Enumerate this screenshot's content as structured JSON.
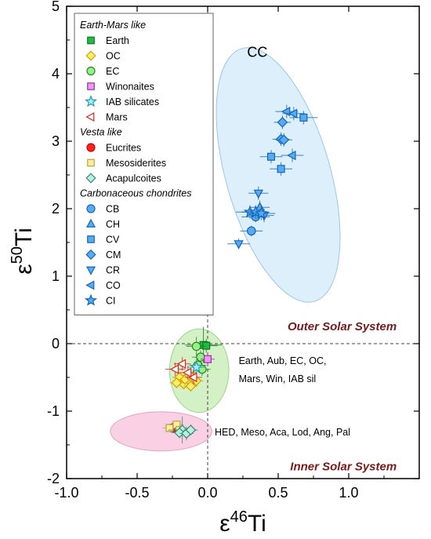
{
  "chart_data": {
    "type": "scatter",
    "xlabel": "ε46Ti",
    "ylabel": "ε50Ti",
    "xlabel_parts": {
      "base": "ε",
      "sup": "46",
      "suffix": "Ti"
    },
    "ylabel_parts": {
      "base": "ε",
      "sup": "50",
      "suffix": "Ti"
    },
    "xlim": [
      -1.0,
      1.5
    ],
    "ylim": [
      -2,
      5
    ],
    "xticks": [
      -1.0,
      -0.5,
      0.0,
      0.5,
      1.0
    ],
    "xtick_labels": [
      "-1.0",
      "-0.5",
      "0.0",
      "0.5",
      "1.0"
    ],
    "yticks": [
      -2,
      -1,
      0,
      1,
      2,
      3,
      4,
      5
    ],
    "ytick_labels": [
      "-2",
      "-1",
      "0",
      "1",
      "2",
      "3",
      "4",
      "5"
    ],
    "grid": false,
    "legend_position": "top-left",
    "zero_lines": true,
    "legend": [
      {
        "kind": "header",
        "label": "Earth-Mars like"
      },
      {
        "kind": "item",
        "label": "Earth",
        "series": "Earth"
      },
      {
        "kind": "item",
        "label": "OC",
        "series": "OC"
      },
      {
        "kind": "item",
        "label": "EC",
        "series": "EC"
      },
      {
        "kind": "item",
        "label": "Winonaites",
        "series": "Winonaites"
      },
      {
        "kind": "item",
        "label": "IAB silicates",
        "series": "IAB silicates"
      },
      {
        "kind": "item",
        "label": "Mars",
        "series": "Mars"
      },
      {
        "kind": "header",
        "label": "Vesta like"
      },
      {
        "kind": "item",
        "label": "Eucrites",
        "series": "Eucrites"
      },
      {
        "kind": "item",
        "label": "Mesosiderites",
        "series": "Mesosiderites"
      },
      {
        "kind": "item",
        "label": "Acapulcoites",
        "series": "Acapulcoites"
      },
      {
        "kind": "header",
        "label": "Carbonaceous chondrites"
      },
      {
        "kind": "item",
        "label": "CB",
        "series": "CB"
      },
      {
        "kind": "item",
        "label": "CH",
        "series": "CH"
      },
      {
        "kind": "item",
        "label": "CV",
        "series": "CV"
      },
      {
        "kind": "item",
        "label": "CM",
        "series": "CM"
      },
      {
        "kind": "item",
        "label": "CR",
        "series": "CR"
      },
      {
        "kind": "item",
        "label": "CO",
        "series": "CO"
      },
      {
        "kind": "item",
        "label": "CI",
        "series": "CI"
      }
    ],
    "series": [
      {
        "name": "Earth",
        "marker": "square",
        "fill": "#22bb44",
        "stroke": "#117722",
        "points": [
          {
            "x": -0.03,
            "y": -0.02,
            "xerr": 0.13,
            "yerr": 0.27
          },
          {
            "x": -0.01,
            "y": -0.03,
            "xerr": 0.08,
            "yerr": 0.1
          }
        ]
      },
      {
        "name": "OC",
        "marker": "diamond",
        "fill": "#ffee66",
        "stroke": "#d4a000",
        "points": [
          {
            "x": -0.2,
            "y": -0.5,
            "xerr": 0.05,
            "yerr": 0.08
          },
          {
            "x": -0.17,
            "y": -0.6,
            "xerr": 0.05,
            "yerr": 0.08
          },
          {
            "x": -0.12,
            "y": -0.63,
            "xerr": 0.05,
            "yerr": 0.08
          },
          {
            "x": -0.16,
            "y": -0.53,
            "xerr": 0.05,
            "yerr": 0.08
          },
          {
            "x": -0.22,
            "y": -0.58,
            "xerr": 0.05,
            "yerr": 0.08
          },
          {
            "x": -0.08,
            "y": -0.55,
            "xerr": 0.05,
            "yerr": 0.08
          },
          {
            "x": -0.13,
            "y": -0.47,
            "xerr": 0.05,
            "yerr": 0.08
          }
        ]
      },
      {
        "name": "EC",
        "marker": "circle",
        "fill": "#99ee88",
        "stroke": "#228822",
        "points": [
          {
            "x": -0.08,
            "y": -0.04,
            "xerr": 0.07,
            "yerr": 0.14
          },
          {
            "x": -0.05,
            "y": -0.2,
            "xerr": 0.06,
            "yerr": 0.1
          },
          {
            "x": -0.07,
            "y": -0.32,
            "xerr": 0.06,
            "yerr": 0.1
          },
          {
            "x": -0.04,
            "y": -0.38,
            "xerr": 0.06,
            "yerr": 0.1
          }
        ]
      },
      {
        "name": "Winonaites",
        "marker": "square",
        "fill": "#ee99ee",
        "stroke": "#9933aa",
        "points": [
          {
            "x": 0.0,
            "y": -0.23,
            "xerr": 0.05,
            "yerr": 0.1
          }
        ]
      },
      {
        "name": "IAB silicates",
        "marker": "star",
        "fill": "#aaeeff",
        "stroke": "#2299bb",
        "points": [
          {
            "x": -0.08,
            "y": -0.35,
            "xerr": 0.06,
            "yerr": 0.12
          }
        ]
      },
      {
        "name": "Mars",
        "marker": "triangle-left",
        "fill": "#ffffff",
        "stroke": "#dd2222",
        "points": [
          {
            "x": -0.23,
            "y": -0.38,
            "xerr": 0.07,
            "yerr": 0.1
          },
          {
            "x": -0.18,
            "y": -0.3,
            "xerr": 0.06,
            "yerr": 0.1
          },
          {
            "x": -0.1,
            "y": -0.5,
            "xerr": 0.06,
            "yerr": 0.1
          },
          {
            "x": -0.14,
            "y": -0.43,
            "xerr": 0.06,
            "yerr": 0.1
          }
        ]
      },
      {
        "name": "Eucrites",
        "marker": "circle",
        "fill": "#ff2222",
        "stroke": "#cc0000",
        "points": [
          {
            "x": -0.25,
            "y": -1.25,
            "xerr": 0.04,
            "yerr": 0.05
          },
          {
            "x": -0.23,
            "y": -1.23,
            "xerr": 0.04,
            "yerr": 0.05
          }
        ]
      },
      {
        "name": "Mesosiderites",
        "marker": "square",
        "fill": "#ffee99",
        "stroke": "#b8a050",
        "points": [
          {
            "x": -0.27,
            "y": -1.25,
            "xerr": 0.05,
            "yerr": 0.06
          },
          {
            "x": -0.22,
            "y": -1.2,
            "xerr": 0.05,
            "yerr": 0.06
          },
          {
            "x": -0.2,
            "y": -1.28,
            "xerr": 0.05,
            "yerr": 0.06
          }
        ]
      },
      {
        "name": "Acapulcoites",
        "marker": "diamond",
        "fill": "#bbeedd",
        "stroke": "#338877",
        "points": [
          {
            "x": -0.18,
            "y": -1.28,
            "xerr": 0.1,
            "yerr": 0.2
          },
          {
            "x": -0.2,
            "y": -1.32,
            "xerr": 0.05,
            "yerr": 0.08
          },
          {
            "x": -0.15,
            "y": -1.33,
            "xerr": 0.05,
            "yerr": 0.1
          },
          {
            "x": -0.12,
            "y": -1.28,
            "xerr": 0.05,
            "yerr": 0.08
          }
        ]
      },
      {
        "name": "CB",
        "marker": "circle",
        "fill": "#5aaaf0",
        "stroke": "#1166bb",
        "points": [
          {
            "x": 0.34,
            "y": 1.88,
            "xerr": 0.1,
            "yerr": 0.08
          },
          {
            "x": 0.31,
            "y": 1.67,
            "xerr": 0.08,
            "yerr": 0.08
          }
        ]
      },
      {
        "name": "CH",
        "marker": "triangle-up",
        "fill": "#5aaaf0",
        "stroke": "#1166bb",
        "points": [
          {
            "x": 0.37,
            "y": 2.02,
            "xerr": 0.07,
            "yerr": 0.1
          }
        ]
      },
      {
        "name": "CV",
        "marker": "square",
        "fill": "#5aaaf0",
        "stroke": "#1166bb",
        "points": [
          {
            "x": 0.68,
            "y": 3.35,
            "xerr": 0.1,
            "yerr": 0.1
          },
          {
            "x": 0.45,
            "y": 2.77,
            "xerr": 0.08,
            "yerr": 0.1
          },
          {
            "x": 0.52,
            "y": 2.59,
            "xerr": 0.08,
            "yerr": 0.1
          }
        ]
      },
      {
        "name": "CM",
        "marker": "diamond",
        "fill": "#5aaaf0",
        "stroke": "#1166bb",
        "points": [
          {
            "x": 0.52,
            "y": 3.03,
            "xerr": 0.06,
            "yerr": 0.1
          },
          {
            "x": 0.53,
            "y": 3.28,
            "xerr": 0.06,
            "yerr": 0.1
          },
          {
            "x": 0.54,
            "y": 3.02,
            "xerr": 0.06,
            "yerr": 0.1
          }
        ]
      },
      {
        "name": "CR",
        "marker": "triangle-down",
        "fill": "#5aaaf0",
        "stroke": "#1166bb",
        "points": [
          {
            "x": 0.22,
            "y": 1.48,
            "xerr": 0.08,
            "yerr": 0.08
          },
          {
            "x": 0.36,
            "y": 2.23,
            "xerr": 0.07,
            "yerr": 0.1
          },
          {
            "x": 0.4,
            "y": 1.9,
            "xerr": 0.07,
            "yerr": 0.1
          }
        ]
      },
      {
        "name": "CO",
        "marker": "triangle-left",
        "fill": "#5aaaf0",
        "stroke": "#1166bb",
        "points": [
          {
            "x": 0.56,
            "y": 3.44,
            "xerr": 0.08,
            "yerr": 0.1
          },
          {
            "x": 0.61,
            "y": 3.41,
            "xerr": 0.08,
            "yerr": 0.1
          },
          {
            "x": 0.6,
            "y": 2.79,
            "xerr": 0.08,
            "yerr": 0.1
          }
        ]
      },
      {
        "name": "CI",
        "marker": "star",
        "fill": "#5aaaf0",
        "stroke": "#1166bb",
        "points": [
          {
            "x": 0.3,
            "y": 1.95,
            "xerr": 0.1,
            "yerr": 0.1
          },
          {
            "x": 0.34,
            "y": 1.95,
            "xerr": 0.1,
            "yerr": 0.1
          },
          {
            "x": 0.38,
            "y": 1.93,
            "xerr": 0.1,
            "yerr": 0.1
          }
        ]
      }
    ],
    "regions": [
      {
        "name": "CC",
        "cx": 0.5,
        "cy": 2.5,
        "rx": 0.37,
        "ry": 1.95,
        "angle": -16,
        "fill": "#d6ecfa",
        "stroke": "#9cc6e6"
      },
      {
        "name": "Earth-Mars",
        "cx": -0.06,
        "cy": -0.4,
        "rx": 0.21,
        "ry": 0.62,
        "angle": 0,
        "fill": "#cdeebc",
        "stroke": "#9cd48c"
      },
      {
        "name": "Vesta",
        "cx": -0.33,
        "cy": -1.3,
        "rx": 0.36,
        "ry": 0.29,
        "angle": 0,
        "fill": "#f8c8df",
        "stroke": "#e4a2c2"
      }
    ],
    "annotations": [
      {
        "text": "CC",
        "x": 0.28,
        "y": 4.25,
        "style": "annot-large"
      },
      {
        "text": "Outer Solar System",
        "x": 1.34,
        "y": 0.2,
        "style": "region",
        "anchor": "end"
      },
      {
        "text": "Earth, Aub, EC, OC,",
        "x": 0.22,
        "y": -0.3,
        "style": "annot"
      },
      {
        "text": "Mars, Win, IAB sil",
        "x": 0.22,
        "y": -0.57,
        "style": "annot"
      },
      {
        "text": "HED, Meso, Aca, Lod, Ang, Pal",
        "x": 0.05,
        "y": -1.36,
        "style": "annot"
      },
      {
        "text": "Inner Solar System",
        "x": 1.34,
        "y": -1.88,
        "style": "region",
        "anchor": "end"
      }
    ]
  }
}
